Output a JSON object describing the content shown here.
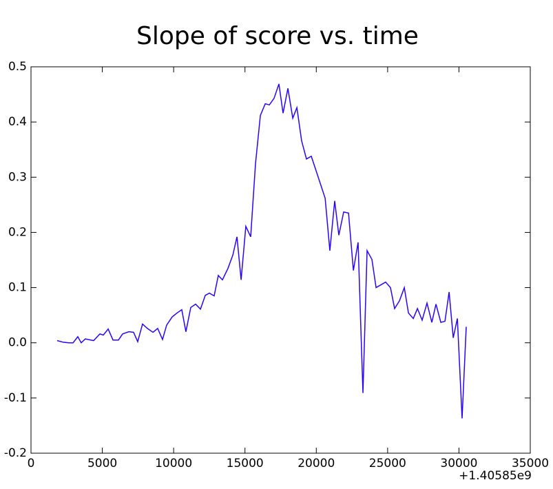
{
  "chart_data": {
    "type": "line",
    "title": "Slope of score vs. time",
    "x": [
      1830,
      2270,
      2650,
      2950,
      3280,
      3520,
      3810,
      4390,
      4830,
      5070,
      5410,
      5750,
      6130,
      6420,
      6860,
      7190,
      7480,
      7820,
      8160,
      8550,
      8880,
      9220,
      9510,
      9900,
      10240,
      10570,
      10860,
      11200,
      11540,
      11880,
      12220,
      12510,
      12840,
      13130,
      13420,
      13810,
      14150,
      14440,
      14730,
      15060,
      15400,
      15740,
      16080,
      16420,
      16710,
      17040,
      17380,
      17670,
      18010,
      18350,
      18640,
      18970,
      19310,
      19650,
      20620,
      20950,
      21290,
      21580,
      21920,
      22260,
      22600,
      22930,
      23270,
      23560,
      23900,
      24190,
      24530,
      24860,
      25200,
      25490,
      25830,
      26170,
      26460,
      26800,
      27090,
      27420,
      27760,
      28100,
      28390,
      28730,
      29020,
      29310,
      29600,
      29890,
      30220,
      30510
    ],
    "series": [
      {
        "color": "#2b00ff",
        "values": [
          0.004,
          0.001,
          0,
          0,
          0.011,
          0,
          0.007,
          0.004,
          0.016,
          0.014,
          0.025,
          0.005,
          0.005,
          0.016,
          0.02,
          0.019,
          0.002,
          0.034,
          0.026,
          0.019,
          0.026,
          0.006,
          0.032,
          0.047,
          0.054,
          0.06,
          0.02,
          0.064,
          0.07,
          0.061,
          0.086,
          0.09,
          0.085,
          0.122,
          0.114,
          0.135,
          0.159,
          0.192,
          0.114,
          0.211,
          0.192,
          0.325,
          0.412,
          0.433,
          0.431,
          0.443,
          0.469,
          0.416,
          0.461,
          0.407,
          0.426,
          0.366,
          0.333,
          0.338,
          0.262,
          0.167,
          0.257,
          0.195,
          0.237,
          0.235,
          0.131,
          0.182,
          -0.091,
          0.167,
          0.151,
          0.1,
          0.105,
          0.11,
          0.1,
          0.062,
          0.076,
          0.1,
          0.054,
          0.044,
          0.062,
          0.041,
          0.072,
          0.037,
          0.07,
          0.037,
          0.039,
          0.092,
          0.009,
          0.044,
          -0.137,
          0.029
        ]
      }
    ],
    "xlim": [
      0,
      35000
    ],
    "xticks": [
      0,
      5000,
      10000,
      15000,
      20000,
      25000,
      30000,
      35000
    ],
    "x_offset_label": "+1.40585e9",
    "ylim": [
      -0.2,
      0.5
    ],
    "yticks": [
      {
        "value": -0.2,
        "label": "-0.2"
      },
      {
        "value": -0.1,
        "label": "-0.1"
      },
      {
        "value": 0,
        "label": "0.0"
      },
      {
        "value": 0.1,
        "label": "0.1"
      },
      {
        "value": 0.2,
        "label": "0.2"
      },
      {
        "value": 0.3,
        "label": "0.3"
      },
      {
        "value": 0.4,
        "label": "0.4"
      },
      {
        "value": 0.5,
        "label": "0.5"
      }
    ],
    "grid": false
  }
}
